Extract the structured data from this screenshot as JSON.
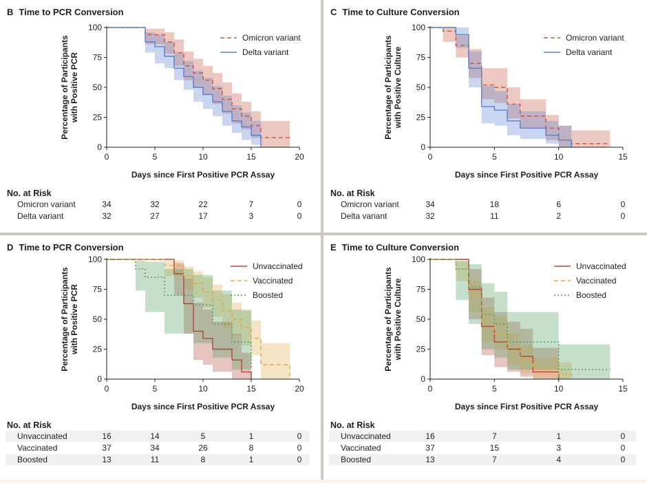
{
  "panels": [
    {
      "letter": "B",
      "title": "Time to PCR Conversion",
      "xlabel": "Days since First Positive PCR Assay",
      "ylabel_lines": [
        "Percentage of Participants",
        "with Positive PCR"
      ],
      "risk_title": "No. at Risk",
      "risk_rows": [
        {
          "label": "Omicron variant",
          "values": [
            "34",
            "32",
            "22",
            "7",
            "0"
          ]
        },
        {
          "label": "Delta variant",
          "values": [
            "32",
            "27",
            "17",
            "3",
            "0"
          ]
        }
      ]
    },
    {
      "letter": "C",
      "title": "Time to Culture Conversion",
      "xlabel": "Days since First Positive PCR Assay",
      "ylabel_lines": [
        "Percentage of Participants",
        "with Positive Culture"
      ],
      "risk_title": "No. at Risk",
      "risk_rows": [
        {
          "label": "Omicron variant",
          "values": [
            "34",
            "18",
            "6",
            "0"
          ]
        },
        {
          "label": "Delta variant",
          "values": [
            "32",
            "11",
            "2",
            "0"
          ]
        }
      ]
    },
    {
      "letter": "D",
      "title": "Time to PCR Conversion",
      "xlabel": "Days since First Positive PCR Assay",
      "ylabel_lines": [
        "Percentage of Participants",
        "with Positive PCR"
      ],
      "risk_title": "No. at Risk",
      "risk_rows": [
        {
          "label": "Unvaccinated",
          "values": [
            "16",
            "14",
            "5",
            "1",
            "0"
          ]
        },
        {
          "label": "Vaccinated",
          "values": [
            "37",
            "34",
            "26",
            "8",
            "0"
          ]
        },
        {
          "label": "Boosted",
          "values": [
            "13",
            "11",
            "8",
            "1",
            "0"
          ]
        }
      ]
    },
    {
      "letter": "E",
      "title": "Time to Culture Conversion",
      "xlabel": "Days since First Positive PCR Assay",
      "ylabel_lines": [
        "Percentage of Participants",
        "with Positive Culture"
      ],
      "risk_title": "No. at Risk",
      "risk_rows": [
        {
          "label": "Unvaccinated",
          "values": [
            "16",
            "7",
            "1",
            "0"
          ]
        },
        {
          "label": "Vaccinated",
          "values": [
            "37",
            "15",
            "3",
            "0"
          ]
        },
        {
          "label": "Boosted",
          "values": [
            "13",
            "7",
            "4",
            "0"
          ]
        }
      ]
    }
  ],
  "chart_data": [
    {
      "panel": "B",
      "type": "line",
      "title": "Time to PCR Conversion",
      "xlabel": "Days since First Positive PCR Assay",
      "ylabel": "Percentage of Participants with Positive PCR",
      "xlim": [
        0,
        20
      ],
      "ylim": [
        0,
        100
      ],
      "xticks": [
        0,
        5,
        10,
        15,
        20
      ],
      "yticks": [
        0,
        25,
        50,
        75,
        100
      ],
      "legend_position": "top-right",
      "series": [
        {
          "name": "Omicron variant",
          "color": "#c8553d",
          "dash": "dashed",
          "x": [
            0,
            3,
            4,
            6,
            7,
            8,
            9,
            10,
            11,
            12,
            13,
            14,
            15,
            16,
            19
          ],
          "y": [
            100,
            100,
            94,
            88,
            79,
            68,
            62,
            56,
            49,
            40,
            32,
            26,
            18,
            8,
            8
          ],
          "ci_lower": [
            100,
            100,
            86,
            78,
            68,
            56,
            50,
            44,
            36,
            28,
            20,
            15,
            8,
            0,
            0
          ],
          "ci_upper": [
            100,
            100,
            99,
            96,
            90,
            80,
            74,
            68,
            62,
            54,
            45,
            38,
            30,
            22,
            22
          ]
        },
        {
          "name": "Delta variant",
          "color": "#5b7fcc",
          "dash": "solid",
          "x": [
            0,
            3,
            4,
            5,
            6,
            7,
            8,
            9,
            10,
            11,
            12,
            13,
            14,
            15,
            16
          ],
          "y": [
            100,
            100,
            88,
            84,
            76,
            66,
            59,
            50,
            44,
            38,
            30,
            22,
            17,
            10,
            0
          ],
          "ci_lower": [
            100,
            100,
            79,
            70,
            66,
            56,
            48,
            38,
            32,
            26,
            18,
            12,
            6,
            2,
            0
          ],
          "ci_upper": [
            100,
            100,
            96,
            94,
            88,
            79,
            72,
            64,
            58,
            51,
            43,
            35,
            29,
            22,
            0
          ]
        }
      ]
    },
    {
      "panel": "C",
      "type": "line",
      "title": "Time to Culture Conversion",
      "xlabel": "Days since First Positive PCR Assay",
      "ylabel": "Percentage of Participants with Positive Culture",
      "xlim": [
        0,
        15
      ],
      "ylim": [
        0,
        100
      ],
      "xticks": [
        0,
        5,
        10,
        15
      ],
      "yticks": [
        0,
        25,
        50,
        75,
        100
      ],
      "legend_position": "top-right",
      "series": [
        {
          "name": "Omicron variant",
          "color": "#c8553d",
          "dash": "dashed",
          "x": [
            0,
            1,
            2,
            3,
            4,
            5,
            6,
            7,
            8,
            9,
            10,
            11,
            14
          ],
          "y": [
            100,
            97,
            85,
            70,
            52,
            50,
            36,
            26,
            26,
            16,
            6,
            3,
            3
          ],
          "ci_lower": [
            100,
            88,
            75,
            58,
            40,
            37,
            24,
            16,
            16,
            6,
            0,
            0,
            0
          ],
          "ci_upper": [
            100,
            100,
            93,
            82,
            66,
            66,
            50,
            40,
            40,
            27,
            18,
            14,
            14
          ]
        },
        {
          "name": "Delta variant",
          "color": "#5b7fcc",
          "dash": "solid",
          "x": [
            0,
            2,
            3,
            4,
            5,
            6,
            7,
            9,
            10,
            11
          ],
          "y": [
            100,
            94,
            66,
            34,
            31,
            22,
            16,
            10,
            6,
            0
          ],
          "ci_lower": [
            100,
            83,
            50,
            20,
            18,
            10,
            7,
            3,
            0,
            0
          ],
          "ci_upper": [
            100,
            100,
            80,
            51,
            47,
            36,
            30,
            22,
            18,
            0
          ]
        }
      ]
    },
    {
      "panel": "D",
      "type": "line",
      "title": "Time to PCR Conversion",
      "xlabel": "Days since First Positive PCR Assay",
      "ylabel": "Percentage of Participants with Positive PCR",
      "xlim": [
        0,
        20
      ],
      "ylim": [
        0,
        100
      ],
      "xticks": [
        0,
        5,
        10,
        15,
        20
      ],
      "yticks": [
        0,
        25,
        50,
        75,
        100
      ],
      "legend_position": "top-right",
      "series": [
        {
          "name": "Unvaccinated",
          "color": "#b0463a",
          "dash": "solid",
          "x": [
            0,
            4,
            7,
            8,
            9,
            10,
            11,
            13,
            14,
            15
          ],
          "y": [
            100,
            100,
            88,
            63,
            40,
            34,
            25,
            16,
            6,
            0
          ],
          "ci_lower": [
            100,
            100,
            70,
            38,
            16,
            12,
            6,
            0,
            0,
            0
          ],
          "ci_upper": [
            100,
            100,
            97,
            84,
            64,
            58,
            48,
            38,
            22,
            0
          ]
        },
        {
          "name": "Vaccinated",
          "color": "#e0a84a",
          "dash": "dashed",
          "x": [
            0,
            4,
            6,
            8,
            9,
            10,
            11,
            12,
            13,
            14,
            15,
            16,
            19
          ],
          "y": [
            100,
            100,
            95,
            86,
            80,
            73,
            66,
            57,
            50,
            43,
            34,
            12,
            0
          ],
          "ci_lower": [
            100,
            100,
            86,
            75,
            68,
            60,
            52,
            43,
            36,
            28,
            20,
            0,
            0
          ],
          "ci_upper": [
            100,
            100,
            99,
            94,
            90,
            85,
            79,
            71,
            64,
            57,
            49,
            30,
            0
          ]
        },
        {
          "name": "Boosted",
          "color": "#4a9a5a",
          "dash": "dotted",
          "x": [
            0,
            3,
            4,
            6,
            9,
            11,
            13,
            15
          ],
          "y": [
            100,
            92,
            85,
            70,
            62,
            46,
            31,
            8
          ],
          "ci_lower": [
            100,
            74,
            56,
            38,
            30,
            18,
            8,
            0
          ],
          "ci_upper": [
            100,
            99,
            98,
            92,
            87,
            74,
            58,
            35
          ]
        }
      ]
    },
    {
      "panel": "E",
      "type": "line",
      "title": "Time to Culture Conversion",
      "xlabel": "Days since First Positive PCR Assay",
      "ylabel": "Percentage of Participants with Positive Culture",
      "xlim": [
        0,
        15
      ],
      "ylim": [
        0,
        100
      ],
      "xticks": [
        0,
        5,
        10,
        15
      ],
      "yticks": [
        0,
        25,
        50,
        75,
        100
      ],
      "legend_position": "top-right",
      "series": [
        {
          "name": "Unvaccinated",
          "color": "#b0463a",
          "dash": "solid",
          "x": [
            0,
            3,
            4,
            5,
            6,
            7,
            8,
            10
          ],
          "y": [
            100,
            75,
            44,
            31,
            25,
            19,
            6,
            0
          ],
          "ci_lower": [
            100,
            50,
            20,
            10,
            6,
            2,
            0,
            0
          ],
          "ci_upper": [
            100,
            92,
            68,
            56,
            48,
            42,
            26,
            0
          ]
        },
        {
          "name": "Vaccinated",
          "color": "#e0a84a",
          "dash": "dashed",
          "x": [
            0,
            2,
            3,
            4,
            5,
            6,
            7,
            8,
            10,
            11
          ],
          "y": [
            100,
            92,
            70,
            46,
            38,
            24,
            15,
            8,
            4,
            0
          ],
          "ci_lower": [
            100,
            82,
            56,
            32,
            25,
            12,
            5,
            0,
            0,
            0
          ],
          "ci_upper": [
            100,
            98,
            82,
            60,
            52,
            38,
            28,
            18,
            14,
            0
          ]
        },
        {
          "name": "Boosted",
          "color": "#4a9a5a",
          "dash": "dotted",
          "x": [
            0,
            2,
            3,
            4,
            5,
            6,
            10,
            14
          ],
          "y": [
            100,
            92,
            77,
            54,
            46,
            31,
            8,
            8
          ],
          "ci_lower": [
            100,
            66,
            46,
            25,
            18,
            8,
            0,
            0
          ],
          "ci_upper": [
            100,
            99,
            96,
            80,
            73,
            56,
            29,
            29
          ]
        }
      ]
    }
  ]
}
